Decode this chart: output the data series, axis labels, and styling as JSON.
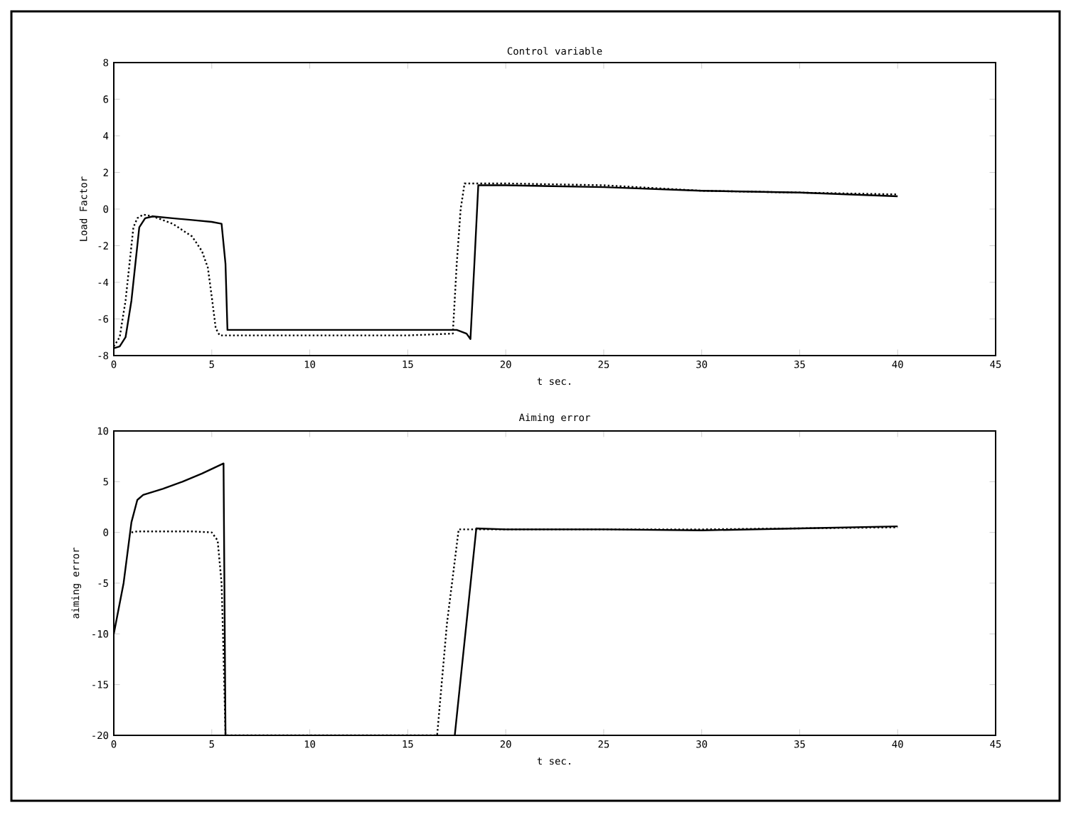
{
  "chart_data": [
    {
      "type": "line",
      "title": "Control variable",
      "xlabel": "t sec.",
      "ylabel": "Load Factor",
      "xlim": [
        0,
        45
      ],
      "ylim": [
        -8,
        8
      ],
      "xticks": [
        0,
        5,
        10,
        15,
        20,
        25,
        30,
        35,
        40,
        45
      ],
      "yticks": [
        -8,
        -6,
        -4,
        -2,
        0,
        2,
        4,
        6,
        8
      ],
      "series": [
        {
          "color": "#000000",
          "line_style": "solid",
          "x": [
            0,
            0.3,
            0.6,
            0.9,
            1.1,
            1.3,
            1.6,
            2,
            3,
            4,
            5,
            5.5,
            5.7,
            5.8,
            6,
            10,
            15,
            17.5,
            18,
            18.2,
            18.4,
            18.6,
            20,
            25,
            30,
            35,
            40
          ],
          "values": [
            -7.6,
            -7.5,
            -7,
            -5,
            -3,
            -1,
            -0.5,
            -0.4,
            -0.5,
            -0.6,
            -0.7,
            -0.8,
            -3,
            -6.6,
            -6.6,
            -6.6,
            -6.6,
            -6.6,
            -6.8,
            -7.1,
            -3,
            1.3,
            1.3,
            1.2,
            1.0,
            0.9,
            0.7
          ]
        },
        {
          "color": "#000000",
          "line_style": "dotted",
          "x": [
            0,
            0.3,
            0.6,
            0.8,
            1,
            1.2,
            1.5,
            2,
            3,
            4,
            4.5,
            4.8,
            5,
            5.2,
            5.4,
            6,
            10,
            15,
            17.3,
            17.5,
            17.7,
            17.9,
            20,
            25,
            30,
            35,
            40
          ],
          "values": [
            -7.5,
            -7,
            -5,
            -3,
            -1,
            -0.5,
            -0.3,
            -0.4,
            -0.8,
            -1.5,
            -2.3,
            -3.2,
            -4.8,
            -6.5,
            -6.9,
            -6.9,
            -6.9,
            -6.9,
            -6.8,
            -3,
            0,
            1.4,
            1.4,
            1.3,
            1.0,
            0.9,
            0.8
          ]
        }
      ]
    },
    {
      "type": "line",
      "title": "Aiming error",
      "xlabel": "t sec.",
      "ylabel": "aiming error",
      "xlim": [
        0,
        45
      ],
      "ylim": [
        -20,
        10
      ],
      "xticks": [
        0,
        5,
        10,
        15,
        20,
        25,
        30,
        35,
        40,
        45
      ],
      "yticks": [
        -20,
        -15,
        -10,
        -5,
        0,
        5,
        10
      ],
      "series": [
        {
          "color": "#000000",
          "line_style": "solid",
          "x": [
            0,
            0.5,
            0.9,
            1.2,
            1.5,
            2.5,
            3.5,
            4.5,
            5.6,
            5.7,
            5.8,
            17.4,
            18.5,
            20,
            25,
            30,
            35,
            40
          ],
          "values": [
            -10,
            -5,
            1,
            3.2,
            3.7,
            4.3,
            5,
            5.8,
            6.8,
            -20,
            null,
            -20,
            0.4,
            0.3,
            0.3,
            0.2,
            0.4,
            0.6
          ]
        },
        {
          "color": "#000000",
          "line_style": "dotted",
          "x": [
            0.9,
            1.2,
            2,
            3,
            4,
            5,
            5.3,
            5.5,
            5.6,
            5.7,
            16.5,
            17,
            17.6,
            20,
            25,
            30,
            35,
            40
          ],
          "values": [
            0,
            0.1,
            0.1,
            0.1,
            0.1,
            0,
            -0.8,
            -5,
            -12,
            -20,
            -20,
            -9,
            0.3,
            0.3,
            0.3,
            0.3,
            0.4,
            0.5
          ]
        }
      ]
    }
  ]
}
